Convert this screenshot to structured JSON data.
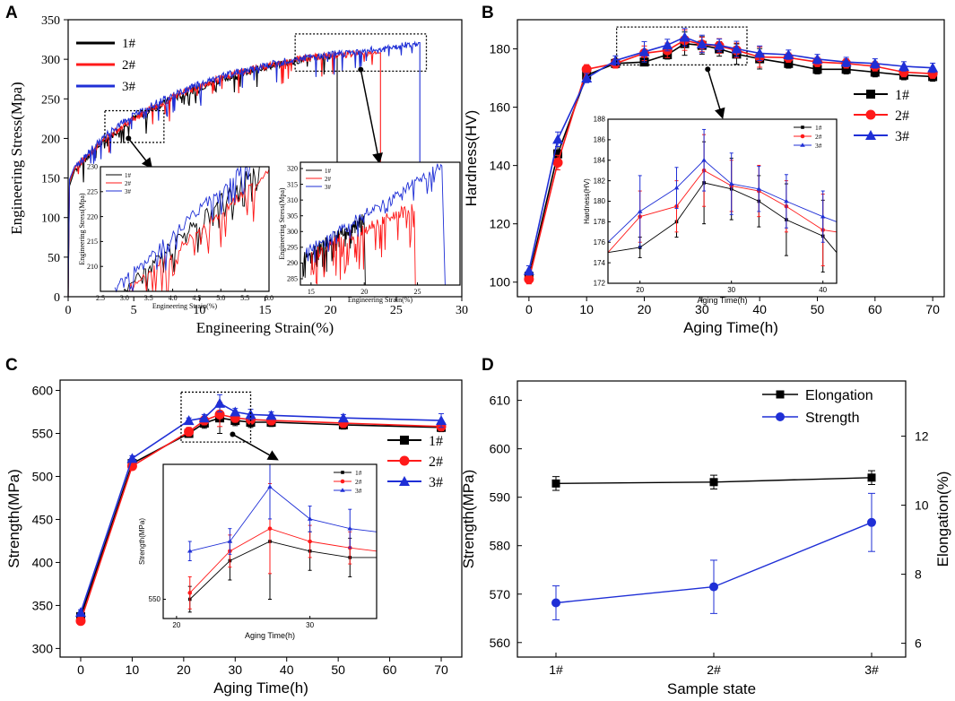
{
  "panels": [
    {
      "id": "A",
      "label": "A"
    },
    {
      "id": "B",
      "label": "B"
    },
    {
      "id": "C",
      "label": "C"
    },
    {
      "id": "D",
      "label": "D"
    }
  ],
  "colors": {
    "s1": "#000000",
    "s2": "#ff1a1a",
    "s3": "#1f2fd6",
    "accent": "#1f2fd6"
  },
  "chart_data": [
    {
      "id": "A",
      "type": "line",
      "xlabel": "Engineering Strain(%)",
      "ylabel": "Engineering Stress(Mpa)",
      "xlim": [
        0,
        30
      ],
      "ylim": [
        0,
        350
      ],
      "xticks": [
        0,
        5,
        10,
        15,
        20,
        25,
        30
      ],
      "yticks": [
        0,
        50,
        100,
        150,
        200,
        250,
        300,
        350
      ],
      "legend": [
        "1#",
        "2#",
        "3#"
      ],
      "series": [
        {
          "name": "1#",
          "points": [
            [
              0,
              0
            ],
            [
              0.1,
              140
            ],
            [
              0.5,
              160
            ],
            [
              1,
              168
            ],
            [
              2,
              185
            ],
            [
              3,
              200
            ],
            [
              5,
              225
            ],
            [
              8,
              250
            ],
            [
              10,
              264
            ],
            [
              12,
              276
            ],
            [
              15,
              290
            ],
            [
              18,
              300
            ],
            [
              20,
              304
            ]
          ],
          "end": 20.5
        },
        {
          "name": "2#",
          "points": [
            [
              0,
              0
            ],
            [
              0.1,
              145
            ],
            [
              0.5,
              162
            ],
            [
              1,
              170
            ],
            [
              2,
              187
            ],
            [
              3,
              202
            ],
            [
              5,
              226
            ],
            [
              8,
              252
            ],
            [
              10,
              266
            ],
            [
              12,
              278
            ],
            [
              15,
              291
            ],
            [
              18,
              301
            ],
            [
              20,
              305
            ],
            [
              22,
              307
            ],
            [
              23.5,
              308
            ]
          ],
          "end": 23.8
        },
        {
          "name": "3#",
          "points": [
            [
              0,
              0
            ],
            [
              0.1,
              148
            ],
            [
              0.5,
              165
            ],
            [
              1,
              172
            ],
            [
              2,
              190
            ],
            [
              3,
              205
            ],
            [
              5,
              230
            ],
            [
              8,
              255
            ],
            [
              10,
              268
            ],
            [
              12,
              280
            ],
            [
              15,
              292
            ],
            [
              18,
              302
            ],
            [
              20,
              306
            ],
            [
              22,
              310
            ],
            [
              25,
              315
            ],
            [
              26.7,
              321
            ]
          ],
          "end": 26.8
        }
      ],
      "inset_left": {
        "xlabel": "Engineering Strain(%)",
        "ylabel": "Engineering Stress(Mpa)",
        "xlim": [
          2.5,
          6.0
        ],
        "ylim": [
          205,
          230
        ],
        "xticks": [
          "2.5",
          "3.0",
          "3.5",
          "4.0",
          "4.5",
          "5.0",
          "5.5",
          "6.0"
        ],
        "yticks": [
          "210",
          "215",
          "220",
          "225",
          "230"
        ],
        "legend": [
          "1#",
          "2#",
          "3#"
        ]
      },
      "inset_right": {
        "xlabel": "Engineering Strain(%)",
        "ylabel": "Engineering Stress(Mpa)",
        "xlim": [
          14,
          29
        ],
        "ylim": [
          283,
          322
        ],
        "xticks": [
          "15",
          "20",
          "25"
        ],
        "yticks": [
          "285",
          "290",
          "295",
          "300",
          "305",
          "310",
          "315",
          "320"
        ],
        "legend": [
          "1#",
          "2#",
          "3#"
        ]
      }
    },
    {
      "id": "B",
      "type": "line",
      "xlabel": "Aging Time(h)",
      "ylabel": "Hardness(HV)",
      "xlim": [
        -2,
        72
      ],
      "ylim": [
        95,
        190
      ],
      "xticks": [
        0,
        10,
        20,
        30,
        40,
        50,
        60,
        70
      ],
      "yticks": [
        100,
        120,
        140,
        160,
        180
      ],
      "legend": [
        "1#",
        "2#",
        "3#"
      ],
      "x": [
        0,
        5,
        10,
        15,
        20,
        24,
        27,
        30,
        33,
        36,
        40,
        45,
        50,
        55,
        60,
        65,
        70
      ],
      "series": [
        {
          "name": "1#",
          "values": [
            102,
            144,
            171,
            175,
            175.5,
            178,
            181.8,
            181.2,
            180.0,
            178.2,
            176.6,
            175,
            173,
            173,
            172,
            171,
            170.5
          ]
        },
        {
          "name": "2#",
          "values": [
            101,
            141,
            173,
            175,
            178.5,
            179.5,
            183.0,
            181.5,
            181.0,
            179.5,
            177.2,
            177,
            175.5,
            175,
            174,
            172,
            171.5
          ]
        },
        {
          "name": "3#",
          "values": [
            104,
            149,
            170,
            176,
            179,
            181.3,
            184.0,
            181.7,
            181.2,
            180.0,
            178.5,
            178,
            176.5,
            175.5,
            175,
            174,
            173.5
          ]
        }
      ],
      "inset": {
        "xlabel": "Aging Time(h)",
        "ylabel": "Hardness(HV)",
        "xlim": [
          16.5,
          41.5
        ],
        "ylim": [
          172,
          188
        ],
        "xticks": [
          "20",
          "30",
          "40"
        ],
        "yticks": [
          "172",
          "174",
          "176",
          "178",
          "180",
          "182",
          "184",
          "186",
          "188"
        ],
        "legend": [
          "1#",
          "2#",
          "3#"
        ]
      }
    },
    {
      "id": "C",
      "type": "line",
      "xlabel": "Aging Time(h)",
      "ylabel": "Strength(MPa)",
      "xlim": [
        -4,
        74
      ],
      "ylim": [
        290,
        612
      ],
      "xticks": [
        0,
        10,
        20,
        30,
        40,
        50,
        60,
        70
      ],
      "yticks": [
        300,
        350,
        400,
        450,
        500,
        550,
        600
      ],
      "legend": [
        "1#",
        "2#",
        "3#"
      ],
      "x": [
        0,
        10,
        21,
        24,
        27,
        30,
        33,
        37,
        51,
        70
      ],
      "series": [
        {
          "name": "1#",
          "values": [
            337,
            515,
            550,
            562,
            568,
            565,
            563,
            563,
            560,
            557
          ]
        },
        {
          "name": "2#",
          "values": [
            332,
            512,
            552,
            565,
            572,
            568,
            566,
            565,
            562,
            558
          ]
        },
        {
          "name": "3#",
          "values": [
            342,
            521,
            565,
            568,
            585,
            575,
            572,
            571,
            568,
            565
          ]
        }
      ],
      "inset": {
        "xlabel": "Aging Time(h)",
        "ylabel": "Strength(MPa)",
        "xlim": [
          19,
          35
        ],
        "ylim": [
          544,
          592
        ],
        "xticks": [
          "20",
          "30"
        ],
        "yticks": [
          "550"
        ],
        "legend": [
          "1#",
          "2#",
          "3#"
        ]
      }
    },
    {
      "id": "D",
      "type": "line",
      "xlabel": "Sample state",
      "ylabel": "Strength(MPa)",
      "ylabel2": "Elongation(%)",
      "categories": [
        "1#",
        "2#",
        "3#"
      ],
      "ylim": [
        557,
        614
      ],
      "ylim2": [
        5.6,
        13.6
      ],
      "yticks": [
        560,
        570,
        580,
        590,
        600,
        610
      ],
      "yticks2": [
        6,
        8,
        10,
        12
      ],
      "legend": [
        "Elongation",
        "Strength"
      ],
      "series": [
        {
          "name": "Elongation",
          "axis": "right",
          "values": [
            10.63,
            10.67,
            10.8
          ],
          "err": [
            0.2,
            0.2,
            0.2
          ]
        },
        {
          "name": "Strength",
          "axis": "left",
          "values": [
            568.2,
            571.5,
            584.8
          ],
          "err": [
            3.5,
            5.5,
            6.0
          ]
        }
      ]
    }
  ]
}
